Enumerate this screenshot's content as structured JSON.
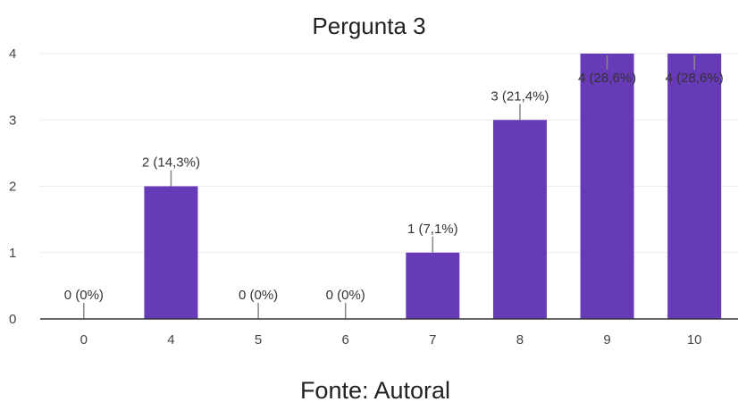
{
  "colors": {
    "bar": "#673ab7",
    "grid": "#ececec",
    "axis": "#333333",
    "leader": "#888888"
  },
  "caption": "Fonte: Autoral",
  "chart_data": {
    "type": "bar",
    "title": "Pergunta 3",
    "xlabel": "",
    "ylabel": "",
    "categories": [
      "0",
      "4",
      "5",
      "6",
      "7",
      "8",
      "9",
      "10"
    ],
    "values": [
      0,
      2,
      0,
      0,
      1,
      3,
      4,
      4
    ],
    "data_labels": [
      "0 (0%)",
      "2 (14,3%)",
      "0 (0%)",
      "0 (0%)",
      "1 (7,1%)",
      "3 (21,4%)",
      "4 (28,6%)",
      "4 (28,6%)"
    ],
    "yticks": [
      "0",
      "1",
      "2",
      "3",
      "4"
    ],
    "ylim": [
      0,
      4
    ],
    "grid": true,
    "legend": "none"
  }
}
